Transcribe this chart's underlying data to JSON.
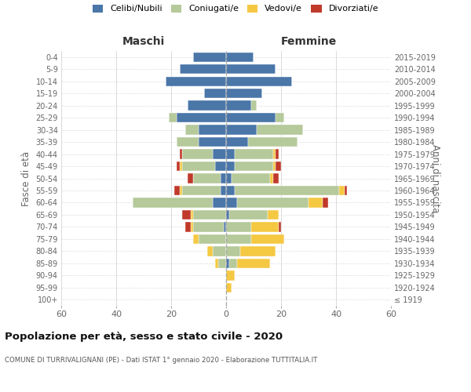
{
  "age_groups": [
    "100+",
    "95-99",
    "90-94",
    "85-89",
    "80-84",
    "75-79",
    "70-74",
    "65-69",
    "60-64",
    "55-59",
    "50-54",
    "45-49",
    "40-44",
    "35-39",
    "30-34",
    "25-29",
    "20-24",
    "15-19",
    "10-14",
    "5-9",
    "0-4"
  ],
  "birth_years": [
    "≤ 1919",
    "1920-1924",
    "1925-1929",
    "1930-1934",
    "1935-1939",
    "1940-1944",
    "1945-1949",
    "1950-1954",
    "1955-1959",
    "1960-1964",
    "1965-1969",
    "1970-1974",
    "1975-1979",
    "1980-1984",
    "1985-1989",
    "1990-1994",
    "1995-1999",
    "2000-2004",
    "2005-2009",
    "2010-2014",
    "2015-2019"
  ],
  "maschi": {
    "celibi": [
      0,
      0,
      0,
      0,
      0,
      0,
      1,
      0,
      5,
      2,
      2,
      4,
      5,
      10,
      10,
      18,
      14,
      8,
      22,
      17,
      12
    ],
    "coniugati": [
      0,
      0,
      0,
      3,
      5,
      10,
      11,
      12,
      29,
      14,
      10,
      12,
      11,
      8,
      5,
      3,
      0,
      0,
      0,
      0,
      0
    ],
    "vedovi": [
      0,
      0,
      0,
      1,
      2,
      2,
      1,
      1,
      0,
      1,
      0,
      1,
      0,
      0,
      0,
      0,
      0,
      0,
      0,
      0,
      0
    ],
    "divorziati": [
      0,
      0,
      0,
      0,
      0,
      0,
      2,
      3,
      0,
      2,
      2,
      1,
      1,
      0,
      0,
      0,
      0,
      0,
      0,
      0,
      0
    ]
  },
  "femmine": {
    "nubili": [
      0,
      0,
      0,
      1,
      0,
      0,
      0,
      1,
      4,
      3,
      2,
      3,
      3,
      8,
      11,
      18,
      9,
      13,
      24,
      18,
      10
    ],
    "coniugate": [
      0,
      0,
      0,
      3,
      5,
      9,
      9,
      14,
      26,
      38,
      14,
      14,
      14,
      18,
      17,
      3,
      2,
      0,
      0,
      0,
      0
    ],
    "vedove": [
      0,
      2,
      3,
      12,
      13,
      12,
      10,
      4,
      5,
      2,
      1,
      1,
      1,
      0,
      0,
      0,
      0,
      0,
      0,
      0,
      0
    ],
    "divorziate": [
      0,
      0,
      0,
      0,
      0,
      0,
      1,
      0,
      2,
      1,
      2,
      2,
      1,
      0,
      0,
      0,
      0,
      0,
      0,
      0,
      0
    ]
  },
  "colors": {
    "celibi_nubili": "#4a76a8",
    "coniugati": "#b5c99a",
    "vedovi": "#f5c842",
    "divorziati": "#c0392b"
  },
  "xlim": 60,
  "title": "Popolazione per età, sesso e stato civile - 2020",
  "subtitle": "COMUNE DI TURRIVALIGNANI (PE) - Dati ISTAT 1° gennaio 2020 - Elaborazione TUTTITALIA.IT",
  "ylabel_left": "Fasce di età",
  "ylabel_right": "Anni di nascita",
  "xlabel_left": "Maschi",
  "xlabel_right": "Femmine"
}
